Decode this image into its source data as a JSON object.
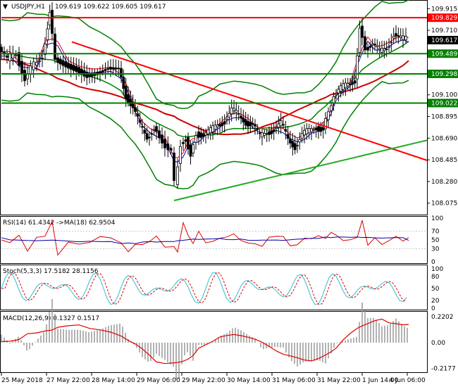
{
  "header": {
    "symbol": "USDJPY,H1",
    "ohlc": "109.619 109.622 109.605 109.617"
  },
  "colors": {
    "candle": "#000000",
    "support_resistance": "#008000",
    "trend_down": "#ff0000",
    "trend_up": "#22aa22",
    "envelope": "#008000",
    "ma_slow": "#cc0000",
    "ma_mid": "#008000",
    "ma_fast_red": "#ff0000",
    "ma_fast_blue": "#0000cc",
    "panel_border": "#000000",
    "osc_line": "#33bbcc",
    "osc_signal": "#dd0000",
    "macd_hist": "#999999",
    "macd_signal": "#dd0000",
    "price_tag_bg": "#000000",
    "level_tag_bg": "#008000",
    "top_level_tag_bg": "#ff0000"
  },
  "chart_data": {
    "type": "candlestick",
    "title": "USDJPY,H1",
    "ylim": [
      108.0,
      109.97
    ],
    "y_ticks": [
      "109.915",
      "109.710",
      "109.489",
      "109.298",
      "109.100",
      "109.022",
      "108.895",
      "108.690",
      "108.485",
      "108.280",
      "108.075"
    ],
    "x_ticks": [
      "25 May 2018",
      "27 May 22:00",
      "28 May 14:00",
      "29 May 06:00",
      "29 May 22:00",
      "30 May 14:00",
      "31 May 06:00",
      "31 May 22:00",
      "1 Jun 14:00",
      "4 Jun 06:00"
    ],
    "current_price": "109.617",
    "levels": [
      {
        "value": 109.829,
        "label": "109.829",
        "color": "#ff0000"
      },
      {
        "value": 109.489,
        "label": "109.489",
        "color": "#008000"
      },
      {
        "value": 109.298,
        "label": "109.298",
        "color": "#008000"
      },
      {
        "value": 109.022,
        "label": "109.022",
        "color": "#008000"
      }
    ],
    "price_path": [
      [
        0,
        109.55
      ],
      [
        12,
        109.42
      ],
      [
        25,
        109.5
      ],
      [
        37,
        109.25
      ],
      [
        50,
        109.38
      ],
      [
        62,
        109.48
      ],
      [
        72,
        109.9
      ],
      [
        80,
        109.45
      ],
      [
        95,
        109.4
      ],
      [
        110,
        109.36
      ],
      [
        125,
        109.3
      ],
      [
        140,
        109.32
      ],
      [
        155,
        109.36
      ],
      [
        170,
        109.35
      ],
      [
        180,
        109.1
      ],
      [
        190,
        108.98
      ],
      [
        200,
        108.8
      ],
      [
        210,
        108.7
      ],
      [
        220,
        108.8
      ],
      [
        232,
        108.68
      ],
      [
        245,
        108.55
      ],
      [
        250,
        108.25
      ],
      [
        258,
        108.65
      ],
      [
        265,
        108.7
      ],
      [
        272,
        108.55
      ],
      [
        280,
        108.75
      ],
      [
        290,
        108.72
      ],
      [
        300,
        108.75
      ],
      [
        310,
        108.82
      ],
      [
        320,
        108.86
      ],
      [
        330,
        108.95
      ],
      [
        340,
        108.9
      ],
      [
        350,
        108.85
      ],
      [
        360,
        108.82
      ],
      [
        370,
        108.7
      ],
      [
        380,
        108.75
      ],
      [
        390,
        108.78
      ],
      [
        400,
        108.82
      ],
      [
        410,
        108.68
      ],
      [
        420,
        108.62
      ],
      [
        430,
        108.72
      ],
      [
        440,
        108.75
      ],
      [
        450,
        108.8
      ],
      [
        460,
        108.78
      ],
      [
        468,
        108.95
      ],
      [
        475,
        109.1
      ],
      [
        485,
        109.15
      ],
      [
        495,
        109.2
      ],
      [
        505,
        109.25
      ],
      [
        512,
        109.75
      ],
      [
        520,
        109.55
      ],
      [
        530,
        109.58
      ],
      [
        540,
        109.5
      ],
      [
        550,
        109.55
      ],
      [
        560,
        109.68
      ],
      [
        570,
        109.62
      ],
      [
        578,
        109.617
      ]
    ],
    "rsi": {
      "label": "RSI(14) 61.4342 ->MA(18) 62.9504",
      "ticks": [
        "100",
        "70",
        "50",
        "30",
        "0"
      ]
    },
    "stoch": {
      "label": "Stoch(5,3,3) 17.5182 28.1156",
      "ticks": [
        "100",
        "80",
        "50",
        "20",
        "0"
      ]
    },
    "macd": {
      "label": "MACD(12,26,9) 0.1327 0.1517",
      "ticks": [
        "0.2202",
        "0.00",
        "-0.2177"
      ]
    }
  }
}
